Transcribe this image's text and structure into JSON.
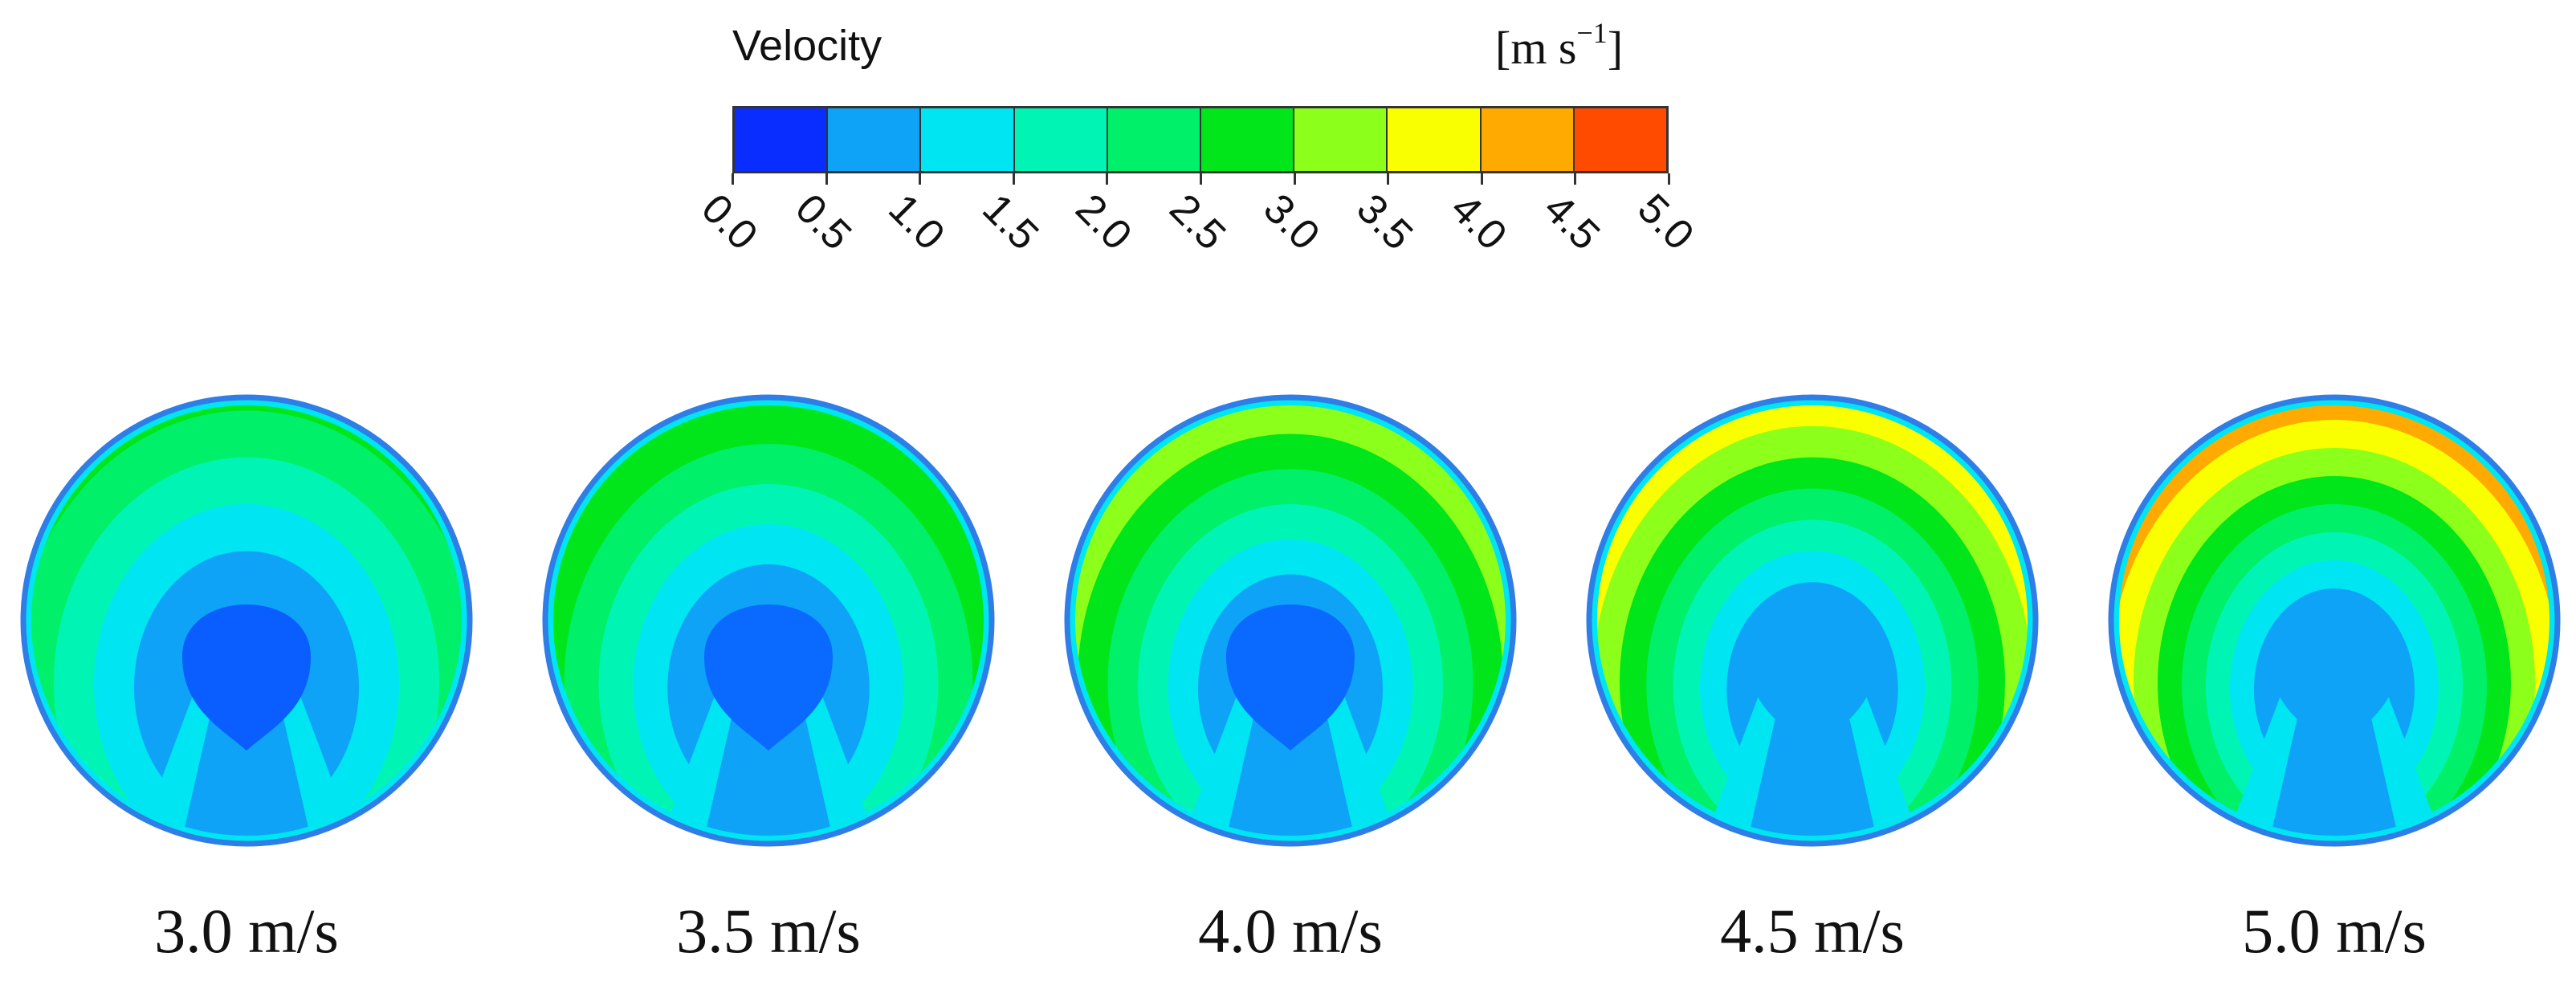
{
  "legend": {
    "title": "Velocity",
    "units_base": "[m s",
    "units_exp": "−1",
    "units_close": "]",
    "ticks": [
      "0.0",
      "0.5",
      "1.0",
      "1.5",
      "2.0",
      "2.5",
      "3.0",
      "3.5",
      "4.0",
      "4.5",
      "5.0"
    ],
    "colors": [
      "#0a2dff",
      "#0ea3f7",
      "#00e5f2",
      "#00f5b4",
      "#00f06a",
      "#00e61a",
      "#8cff1a",
      "#faff00",
      "#ffaa00",
      "#ff4b00"
    ]
  },
  "panels": [
    {
      "label": "3.0 m/s",
      "max_band": 5,
      "band_colors": [
        "#0ea3f7",
        "#0ea3f7",
        "#00e5f2",
        "#00f5b4",
        "#00f06a",
        "#00e61a"
      ],
      "core": "#0a5dff"
    },
    {
      "label": "3.5 m/s",
      "max_band": 6,
      "band_colors": [
        "#0ea3f7",
        "#0ea3f7",
        "#00e5f2",
        "#00f5b4",
        "#00f06a",
        "#00e61a",
        "#8cff1a"
      ],
      "core": "#0a6aff"
    },
    {
      "label": "4.0 m/s",
      "max_band": 7,
      "band_colors": [
        "#0ea3f7",
        "#0ea3f7",
        "#00e5f2",
        "#00f5b4",
        "#00f06a",
        "#00e61a",
        "#8cff1a",
        "#faff00"
      ],
      "core": "#0a6aff"
    },
    {
      "label": "4.5 m/s",
      "max_band": 8,
      "band_colors": [
        "#0ea3f7",
        "#0ea3f7",
        "#00e5f2",
        "#00f5b4",
        "#00f06a",
        "#00e61a",
        "#8cff1a",
        "#faff00",
        "#ffaa00"
      ],
      "core": "#0ea3f7"
    },
    {
      "label": "5.0 m/s",
      "max_band": 9,
      "band_colors": [
        "#0ea3f7",
        "#0ea3f7",
        "#00e5f2",
        "#00f5b4",
        "#00f06a",
        "#00e61a",
        "#8cff1a",
        "#faff00",
        "#ffaa00",
        "#ff4b00"
      ],
      "core": "#0ea3f7"
    }
  ]
}
